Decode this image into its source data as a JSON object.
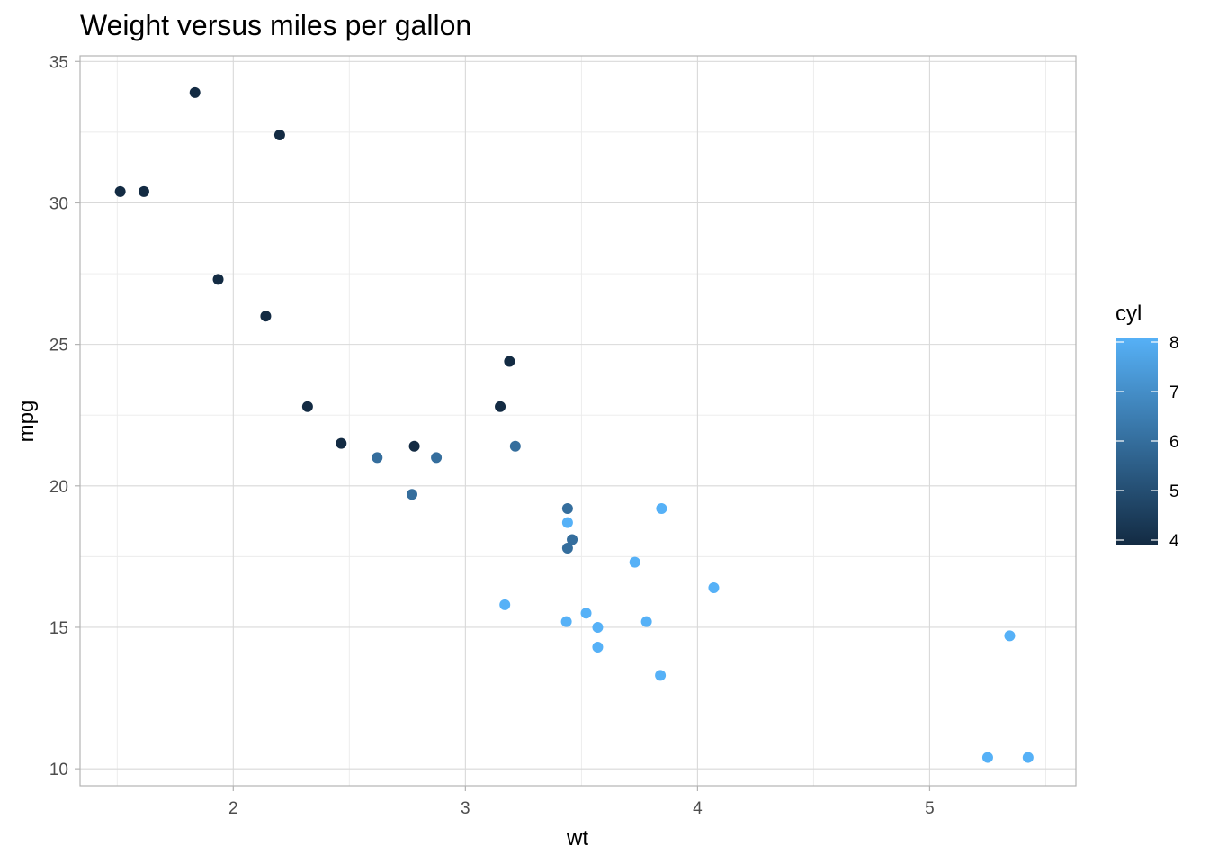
{
  "chart_data": {
    "type": "scatter",
    "title": "Weight versus miles per gallon",
    "xlabel": "wt",
    "ylabel": "mpg",
    "xlim": [
      1.34,
      5.63
    ],
    "ylim": [
      9.4,
      35.2
    ],
    "x_ticks": [
      2,
      3,
      4,
      5
    ],
    "x_minor_ticks": [
      1.5,
      2.5,
      3.5,
      4.5,
      5.5
    ],
    "y_ticks": [
      10,
      15,
      20,
      25,
      30,
      35
    ],
    "y_minor_ticks": [
      12.5,
      17.5,
      22.5,
      27.5,
      32.5
    ],
    "grid": true,
    "legend": {
      "title": "cyl",
      "placement": "right",
      "min": 4,
      "max": 8,
      "ticks": [
        4,
        5,
        6,
        7,
        8
      ],
      "color_low": "#132B43",
      "color_high": "#56B1F7"
    },
    "points": [
      {
        "x": 2.62,
        "y": 21.0,
        "cyl": 6
      },
      {
        "x": 2.875,
        "y": 21.0,
        "cyl": 6
      },
      {
        "x": 2.32,
        "y": 22.8,
        "cyl": 4
      },
      {
        "x": 3.215,
        "y": 21.4,
        "cyl": 6
      },
      {
        "x": 3.44,
        "y": 18.7,
        "cyl": 8
      },
      {
        "x": 3.46,
        "y": 18.1,
        "cyl": 6
      },
      {
        "x": 3.57,
        "y": 14.3,
        "cyl": 8
      },
      {
        "x": 3.19,
        "y": 24.4,
        "cyl": 4
      },
      {
        "x": 3.15,
        "y": 22.8,
        "cyl": 4
      },
      {
        "x": 3.44,
        "y": 19.2,
        "cyl": 6
      },
      {
        "x": 3.44,
        "y": 17.8,
        "cyl": 6
      },
      {
        "x": 4.07,
        "y": 16.4,
        "cyl": 8
      },
      {
        "x": 3.73,
        "y": 17.3,
        "cyl": 8
      },
      {
        "x": 3.78,
        "y": 15.2,
        "cyl": 8
      },
      {
        "x": 5.25,
        "y": 10.4,
        "cyl": 8
      },
      {
        "x": 5.424,
        "y": 10.4,
        "cyl": 8
      },
      {
        "x": 5.345,
        "y": 14.7,
        "cyl": 8
      },
      {
        "x": 2.2,
        "y": 32.4,
        "cyl": 4
      },
      {
        "x": 1.615,
        "y": 30.4,
        "cyl": 4
      },
      {
        "x": 1.835,
        "y": 33.9,
        "cyl": 4
      },
      {
        "x": 2.465,
        "y": 21.5,
        "cyl": 4
      },
      {
        "x": 3.52,
        "y": 15.5,
        "cyl": 8
      },
      {
        "x": 3.435,
        "y": 15.2,
        "cyl": 8
      },
      {
        "x": 3.84,
        "y": 13.3,
        "cyl": 8
      },
      {
        "x": 3.845,
        "y": 19.2,
        "cyl": 8
      },
      {
        "x": 1.935,
        "y": 27.3,
        "cyl": 4
      },
      {
        "x": 2.14,
        "y": 26.0,
        "cyl": 4
      },
      {
        "x": 1.513,
        "y": 30.4,
        "cyl": 4
      },
      {
        "x": 3.17,
        "y": 15.8,
        "cyl": 8
      },
      {
        "x": 2.77,
        "y": 19.7,
        "cyl": 6
      },
      {
        "x": 3.57,
        "y": 15.0,
        "cyl": 8
      },
      {
        "x": 2.78,
        "y": 21.4,
        "cyl": 4
      }
    ]
  }
}
